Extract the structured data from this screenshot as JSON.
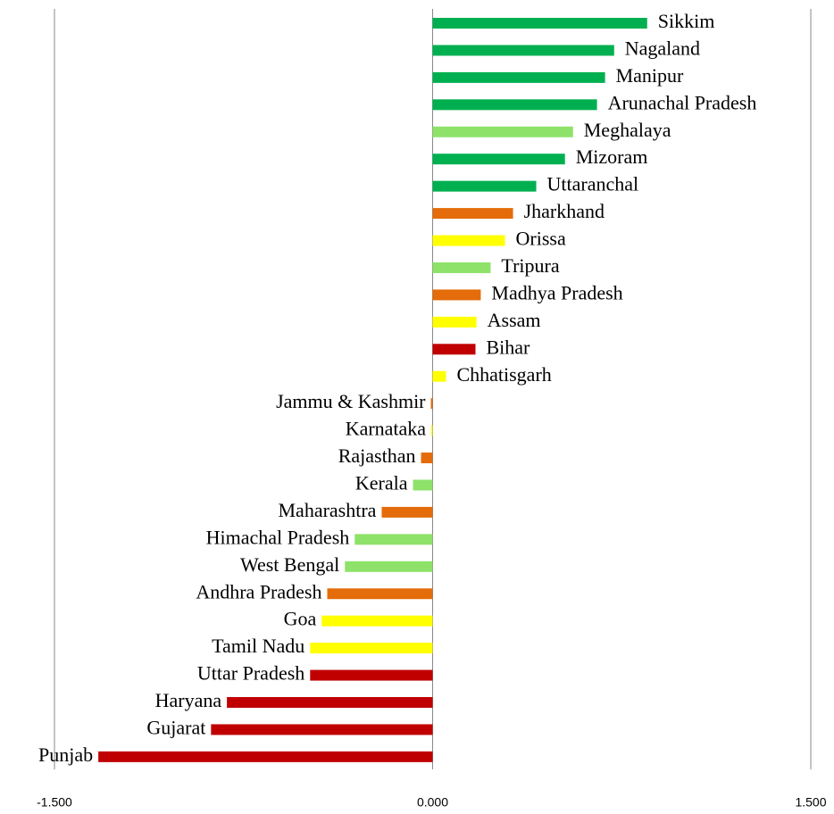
{
  "chart_data": {
    "type": "barh",
    "categories": [
      "Sikkim",
      "Nagaland",
      "Manipur",
      "Arunachal Pradesh",
      "Meghalaya",
      "Mizoram",
      "Uttaranchal",
      "Jharkhand",
      "Orissa",
      "Tripura",
      "Madhya Pradesh",
      "Assam",
      "Bihar",
      "Chhatisgarh",
      "Jammu & Kashmir",
      "Karnataka",
      "Rajasthan",
      "Kerala",
      "Maharashtra",
      "Himachal Pradesh",
      "West Bengal",
      "Andhra Pradesh",
      "Goa",
      "Tamil Nadu",
      "Uttar Pradesh",
      "Haryana",
      "Gujarat",
      "Punjab"
    ],
    "values": [
      0.851,
      0.72,
      0.684,
      0.652,
      0.557,
      0.525,
      0.411,
      0.319,
      0.287,
      0.23,
      0.191,
      0.174,
      0.17,
      0.053,
      -0.007,
      -0.005,
      -0.046,
      -0.078,
      -0.202,
      -0.309,
      -0.348,
      -0.418,
      -0.44,
      -0.486,
      -0.486,
      -0.816,
      -0.879,
      -1.326
    ],
    "colors": [
      "#00b050",
      "#00b050",
      "#00b050",
      "#00b050",
      "#8ee26a",
      "#00b050",
      "#00b050",
      "#e46c0a",
      "#ffff00",
      "#8ee26a",
      "#e46c0a",
      "#ffff00",
      "#c00000",
      "#ffff00",
      "#e46c0a",
      "#ffff00",
      "#e46c0a",
      "#8ee26a",
      "#e46c0a",
      "#8ee26a",
      "#8ee26a",
      "#e46c0a",
      "#ffff00",
      "#ffff00",
      "#c00000",
      "#c00000",
      "#c00000",
      "#c00000"
    ],
    "xlim": [
      -1.5,
      1.5
    ],
    "xticks": [
      {
        "value": -1.5,
        "label": "-1.500"
      },
      {
        "value": 0,
        "label": "0.000"
      },
      {
        "value": 1.5,
        "label": "1.500"
      }
    ],
    "grid": true
  }
}
